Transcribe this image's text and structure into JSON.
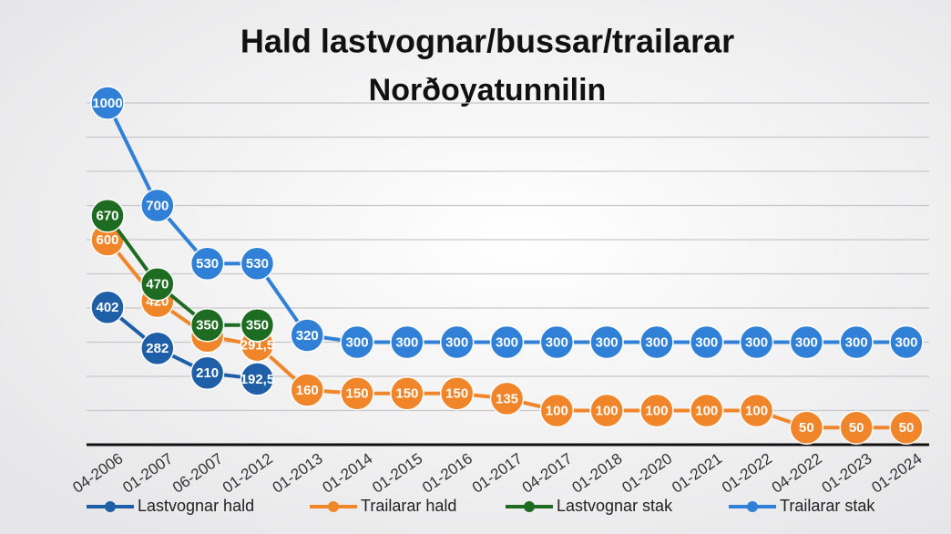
{
  "chart_data": {
    "type": "line",
    "title": "Hald lastvognar/bussar/trailarar",
    "subtitle": "Norðoyatunnilin",
    "categories": [
      "04-2006",
      "01-2007",
      "06-2007",
      "01-2012",
      "01-2013",
      "01-2014",
      "01-2015",
      "01-2016",
      "01-2017",
      "04-2017",
      "01-2018",
      "01-2020",
      "01-2021",
      "01-2022",
      "04-2022",
      "01-2023",
      "01-2024"
    ],
    "series": [
      {
        "name": "Lastvognar hald",
        "color": "#1f5fa8",
        "values": [
          402,
          282,
          210,
          192.5,
          null,
          null,
          null,
          null,
          null,
          null,
          null,
          null,
          null,
          null,
          null,
          null,
          null
        ],
        "value_labels": [
          "402",
          "282",
          "210",
          "192,5",
          null,
          null,
          null,
          null,
          null,
          null,
          null,
          null,
          null,
          null,
          null,
          null,
          null
        ]
      },
      {
        "name": "Trailarar hald",
        "color": "#f0852a",
        "values": [
          600,
          420,
          318,
          291.5,
          160,
          150,
          150,
          150,
          135,
          100,
          100,
          100,
          100,
          100,
          50,
          50,
          50
        ],
        "value_labels": [
          "600",
          "420",
          "318",
          "291,5",
          "160",
          "150",
          "150",
          "150",
          "135",
          "100",
          "100",
          "100",
          "100",
          "100",
          "50",
          "50",
          "50"
        ]
      },
      {
        "name": "Lastvognar stak",
        "color": "#1e6b22",
        "values": [
          670,
          470,
          350,
          350,
          null,
          null,
          null,
          null,
          null,
          null,
          null,
          null,
          null,
          null,
          null,
          null,
          null
        ]
      },
      {
        "name": "Trailarar stak",
        "color": "#2f80d6",
        "values": [
          1000,
          700,
          530,
          530,
          320,
          300,
          300,
          300,
          300,
          300,
          300,
          300,
          300,
          300,
          300,
          300,
          300
        ]
      }
    ],
    "ylim": [
      0,
      1000
    ],
    "yticks": [
      0,
      100,
      200,
      300,
      400,
      500,
      600,
      700,
      800,
      900,
      1000
    ],
    "grid": true,
    "legend": "bottom"
  }
}
